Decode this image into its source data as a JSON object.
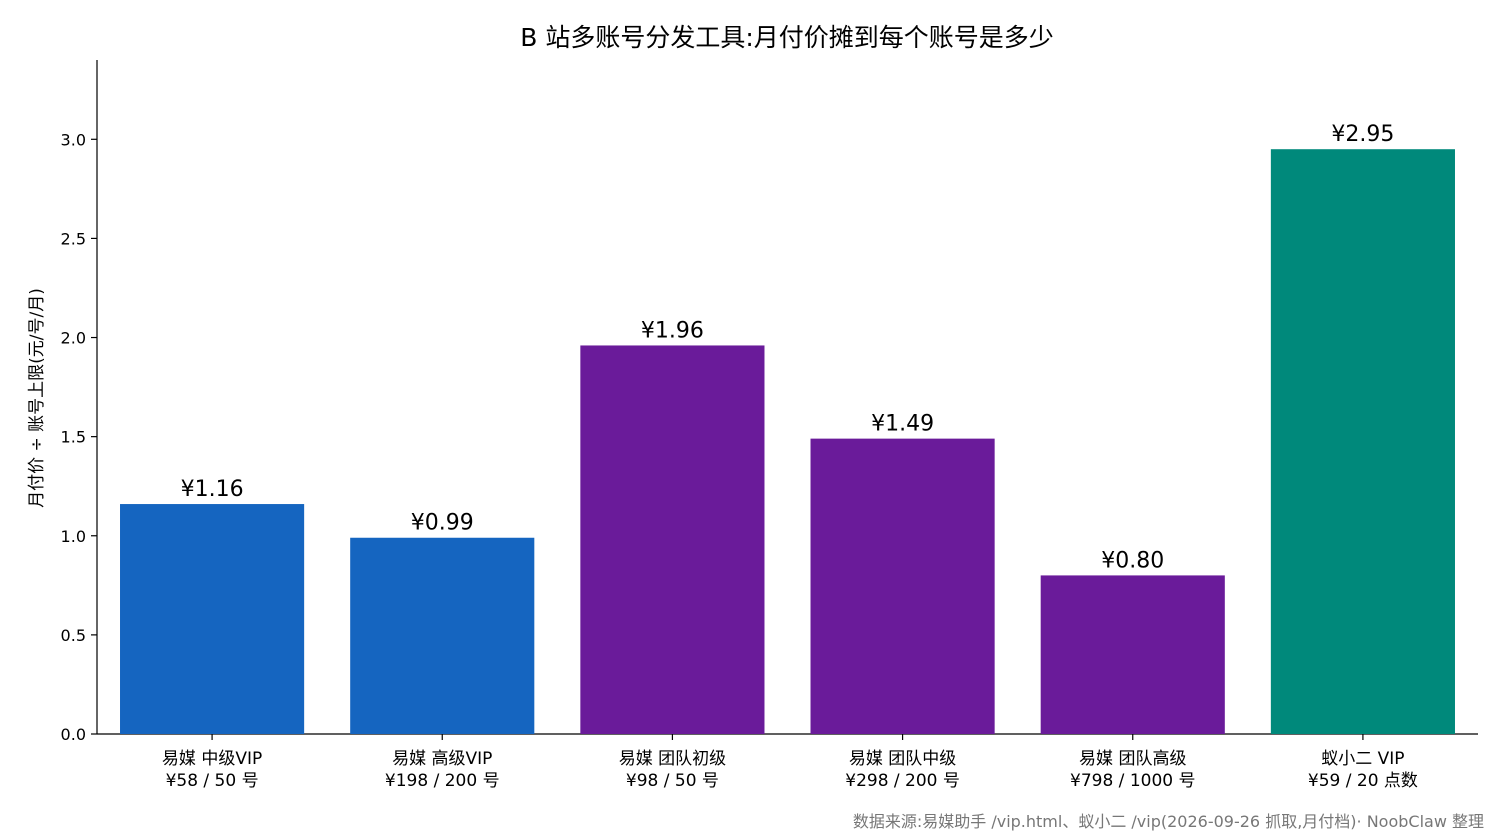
{
  "chart_data": {
    "type": "bar",
    "title": "B 站多账号分发工具:月付价摊到每个账号是多少",
    "xlabel": "",
    "ylabel": "月付价 ÷ 账号上限(元/号/月)",
    "ylim": [
      0,
      3.4
    ],
    "yticks": [
      "0.0",
      "0.5",
      "1.0",
      "1.5",
      "2.0",
      "2.5",
      "3.0"
    ],
    "grid": false,
    "categories": [
      [
        "易媒 中级VIP",
        "¥58 / 50 号"
      ],
      [
        "易媒 高级VIP",
        "¥198 / 200 号"
      ],
      [
        "易媒 团队初级",
        "¥98 / 50 号"
      ],
      [
        "易媒 团队中级",
        "¥298 / 200 号"
      ],
      [
        "易媒 团队高级",
        "¥798 / 1000 号"
      ],
      [
        "蚁小二 VIP",
        "¥59 / 20 点数"
      ]
    ],
    "values": [
      1.16,
      0.99,
      1.96,
      1.49,
      0.8,
      2.95
    ],
    "value_labels": [
      "¥1.16",
      "¥0.99",
      "¥1.96",
      "¥1.49",
      "¥0.80",
      "¥2.95"
    ],
    "colors": [
      "#1565c0",
      "#1565c0",
      "#6a1b9a",
      "#6a1b9a",
      "#6a1b9a",
      "#00897b"
    ],
    "source": "数据来源:易媒助手 /vip.html、蚁小二 /vip(2026-09-26 抓取,月付档)· NoobClaw 整理"
  }
}
